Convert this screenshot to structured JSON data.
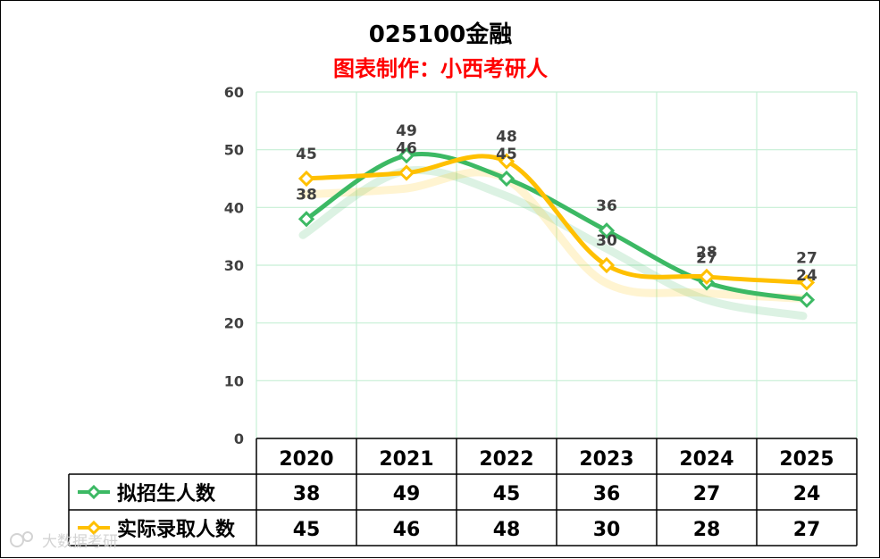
{
  "chart_data": {
    "type": "line",
    "title": "025100金融",
    "subtitle": "图表制作：小西考研人",
    "categories": [
      "2020",
      "2021",
      "2022",
      "2023",
      "2024",
      "2025"
    ],
    "ylim": [
      0,
      60
    ],
    "yticks": [
      0,
      10,
      20,
      30,
      40,
      50,
      60
    ],
    "series": [
      {
        "name": "拟招生人数",
        "values": [
          38,
          49,
          45,
          36,
          27,
          24
        ],
        "color": "#3cb964"
      },
      {
        "name": "实际录取人数",
        "values": [
          45,
          46,
          48,
          30,
          28,
          27
        ],
        "color": "#ffc000"
      }
    ],
    "legend": "table-left",
    "grid": true
  },
  "colors": {
    "gridline": "#c6efd5",
    "subtitle": "#ff0000"
  },
  "watermark": "大数据考研"
}
